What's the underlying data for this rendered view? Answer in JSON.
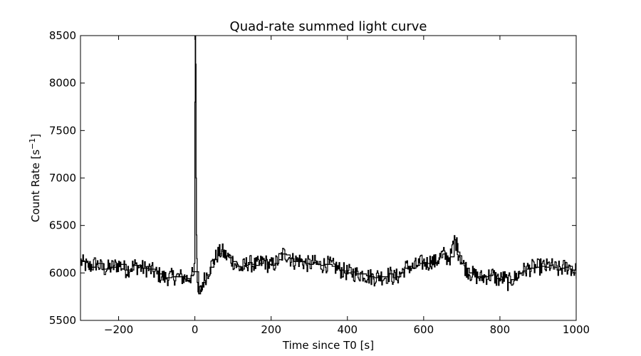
{
  "chart_data": {
    "type": "line",
    "title": "Quad-rate summed light curve",
    "xlabel": "Time since T0 [s]",
    "ylabel_main": "Count Rate [s",
    "ylabel_sup": "−1",
    "ylabel_end": "]",
    "xlim": [
      -300,
      1000
    ],
    "ylim": [
      5500,
      8500
    ],
    "xticks": [
      -200,
      0,
      200,
      400,
      600,
      800,
      1000
    ],
    "xtick_labels": [
      "−200",
      "0",
      "200",
      "400",
      "600",
      "800",
      "1000"
    ],
    "yticks": [
      5500,
      6000,
      6500,
      7000,
      7500,
      8000,
      8500
    ],
    "ytick_labels": [
      "5500",
      "6000",
      "6500",
      "7000",
      "7500",
      "8000",
      "8500"
    ],
    "grid": false,
    "series": [
      {
        "line_color": "#000000",
        "step": true,
        "x": [
          -300,
          -280,
          -260,
          -240,
          -220,
          -200,
          -180,
          -160,
          -140,
          -120,
          -100,
          -80,
          -60,
          -40,
          -20,
          -10,
          -4,
          -2,
          0,
          1,
          2,
          3,
          4,
          5,
          6,
          8,
          10,
          15,
          20,
          30,
          40,
          50,
          60,
          70,
          80,
          90,
          100,
          110,
          120,
          130,
          140,
          150,
          160,
          170,
          180,
          190,
          200,
          210,
          220,
          230,
          240,
          250,
          260,
          270,
          280,
          290,
          300,
          310,
          320,
          330,
          340,
          350,
          360,
          370,
          380,
          390,
          400,
          410,
          420,
          430,
          440,
          450,
          460,
          470,
          480,
          490,
          500,
          510,
          520,
          530,
          540,
          550,
          560,
          570,
          580,
          590,
          600,
          610,
          620,
          630,
          640,
          650,
          660,
          670,
          680,
          685,
          690,
          695,
          700,
          710,
          720,
          730,
          740,
          750,
          760,
          770,
          780,
          790,
          800,
          810,
          820,
          830,
          840,
          850,
          860,
          870,
          880,
          890,
          900,
          910,
          920,
          930,
          940,
          950,
          960,
          970,
          980,
          990,
          1000
        ],
        "y": [
          6120,
          6060,
          6100,
          6040,
          6060,
          6090,
          6030,
          6080,
          6050,
          6040,
          5990,
          5950,
          5960,
          5960,
          5940,
          5970,
          5980,
          6100,
          7800,
          8600,
          8200,
          7000,
          6400,
          6150,
          5900,
          5800,
          5780,
          5820,
          5900,
          5980,
          6060,
          6140,
          6200,
          6230,
          6180,
          6160,
          6120,
          6070,
          6040,
          6080,
          6110,
          6090,
          6080,
          6100,
          6130,
          6090,
          6080,
          6100,
          6140,
          6200,
          6190,
          6150,
          6120,
          6140,
          6120,
          6100,
          6090,
          6110,
          6090,
          6080,
          6090,
          6090,
          6070,
          6060,
          6030,
          6020,
          6000,
          6010,
          5990,
          5990,
          5990,
          5970,
          5960,
          5950,
          5970,
          5960,
          5960,
          5990,
          5950,
          5960,
          6000,
          6050,
          6070,
          6050,
          6080,
          6100,
          6110,
          6100,
          6130,
          6110,
          6160,
          6200,
          6160,
          6170,
          6350,
          6310,
          6220,
          6180,
          6100,
          6050,
          6000,
          5980,
          5960,
          5950,
          5960,
          5970,
          5980,
          5940,
          5930,
          5950,
          5900,
          5930,
          5950,
          6000,
          6020,
          6040,
          6050,
          6060,
          6060,
          6070,
          6060,
          6080,
          6060,
          6030,
          6050,
          6060,
          6070,
          6030,
          6020
        ]
      }
    ]
  }
}
